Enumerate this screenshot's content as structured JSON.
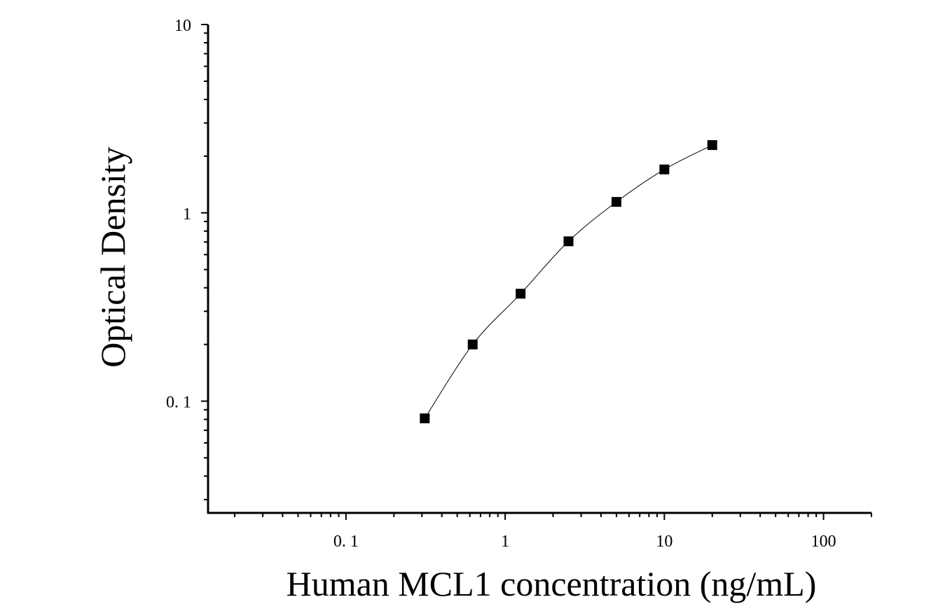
{
  "chart_data": {
    "type": "scatter",
    "title": "",
    "xlabel": "Human MCL1 concentration (ng/mL)",
    "ylabel": "Optical Density",
    "x_scale": "log",
    "y_scale": "log",
    "xlim": [
      0.0136,
      200
    ],
    "ylim": [
      0.0255,
      10
    ],
    "x_ticks": [
      {
        "value": 0.1,
        "label": "0. 1"
      },
      {
        "value": 1,
        "label": "1"
      },
      {
        "value": 10,
        "label": "10"
      },
      {
        "value": 100,
        "label": "100"
      }
    ],
    "y_ticks": [
      {
        "value": 0.1,
        "label": "0. 1"
      },
      {
        "value": 1,
        "label": "1"
      },
      {
        "value": 10,
        "label": "10"
      }
    ],
    "grid": false,
    "legend": "none",
    "marker": "square",
    "marker_color": "#000000",
    "line_color": "#000000",
    "series": [
      {
        "x": [
          0.3125,
          0.625,
          1.25,
          2.5,
          5,
          10,
          20
        ],
        "y": [
          0.081,
          0.2,
          0.372,
          0.706,
          1.143,
          1.7,
          2.29
        ]
      }
    ]
  }
}
